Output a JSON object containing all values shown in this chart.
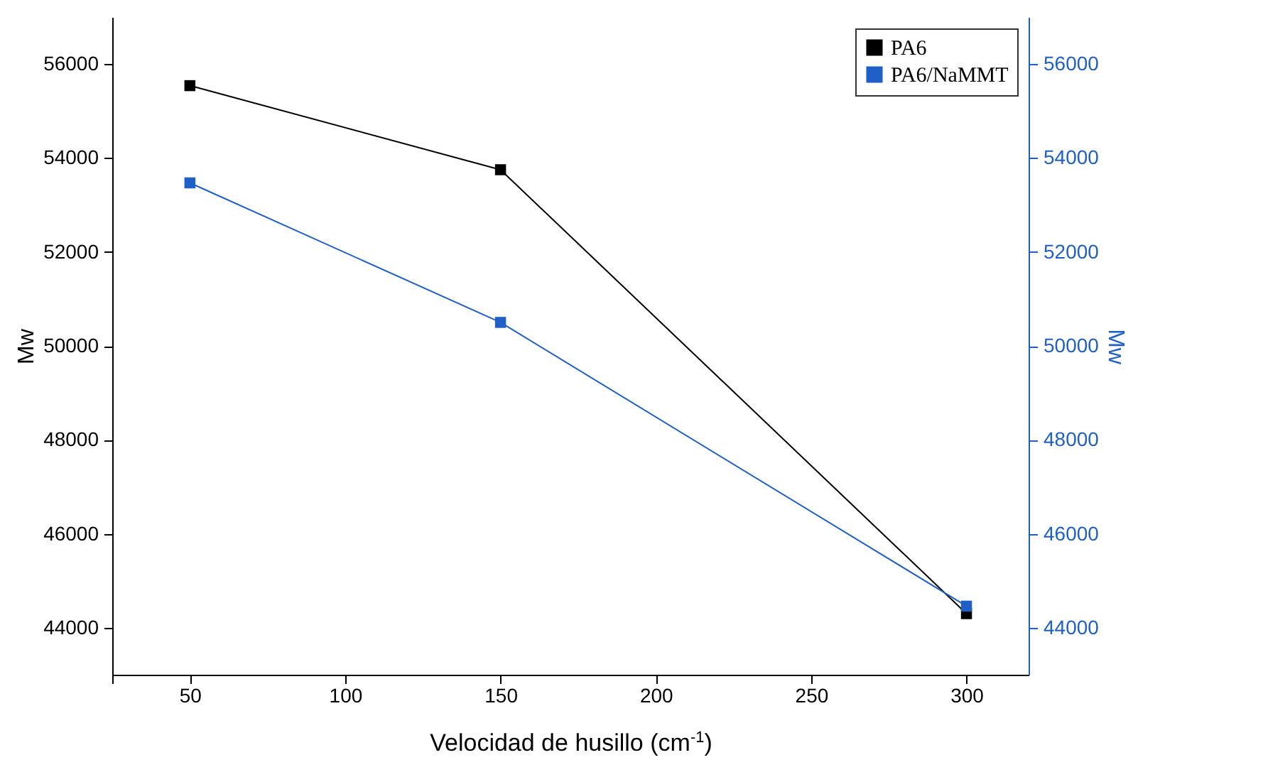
{
  "chart_data": {
    "type": "line",
    "xlabel": "Velocidad de husillo (cm$^{-1}$)",
    "ylabel": "Mw",
    "y2label": "Mw",
    "x": [
      50,
      150,
      300
    ],
    "series": [
      {
        "name": "PA6",
        "color": "#000000",
        "values": [
          55540,
          53750,
          44300
        ]
      },
      {
        "name": "PA6/NaMMT",
        "color": "#1f5fc8",
        "values": [
          53470,
          50500,
          44460
        ],
        "axis": "y2"
      }
    ],
    "xlim": [
      25,
      320
    ],
    "xticks": [
      {
        "value": 25,
        "label": null
      },
      50,
      100,
      150,
      200,
      250,
      300
    ],
    "ylim": [
      43000,
      57000
    ],
    "yticks": [
      44000,
      46000,
      48000,
      50000,
      52000,
      54000,
      56000
    ],
    "y2lim": [
      43000,
      57000
    ],
    "y2ticks": [
      44000,
      46000,
      48000,
      50000,
      52000,
      54000,
      56000
    ],
    "legend": "top right",
    "marker": "square",
    "line_style": "solid"
  }
}
